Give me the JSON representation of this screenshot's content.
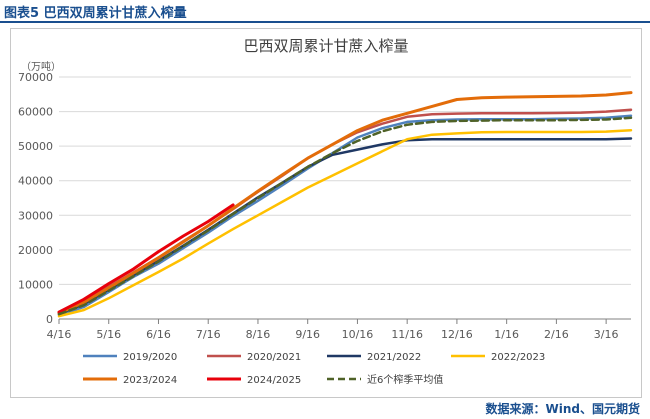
{
  "figure": {
    "label": "图表5 巴西双周累计甘蔗入榨量",
    "source": "数据来源：Wind、国元期货"
  },
  "colors": {
    "header": "#1a4f8f",
    "grid": "#d9d9d9",
    "axis": "#808080"
  },
  "chart_data": {
    "type": "line",
    "title": "巴西双周累计甘蔗入榨量",
    "ylabel": "（万吨）",
    "xlabel": "",
    "ylim": [
      0,
      70000
    ],
    "yticks": [
      0,
      10000,
      20000,
      30000,
      40000,
      50000,
      60000,
      70000
    ],
    "grid": "horizontal",
    "legend_position": "bottom",
    "x": [
      "4/16",
      "5/16",
      "6/16",
      "7/16",
      "8/16",
      "9/16",
      "10/16",
      "11/16",
      "12/16",
      "1/16",
      "2/16",
      "3/16"
    ],
    "x_extent": [
      0,
      11.5
    ],
    "series": [
      {
        "name": "2019/2020",
        "color": "#4f81bd",
        "width": 2.5,
        "dash": "",
        "x": [
          0,
          0.5,
          1,
          1.5,
          2,
          2.5,
          3,
          3.5,
          4,
          4.5,
          5,
          5.5,
          6,
          6.5,
          7,
          7.5,
          8,
          8.5,
          9,
          9.5,
          10,
          10.5,
          11,
          11.5
        ],
        "values": [
          1200,
          3500,
          7800,
          12200,
          16000,
          20500,
          25000,
          29800,
          34200,
          38800,
          43500,
          48000,
          52500,
          55200,
          57000,
          57500,
          57700,
          57800,
          57800,
          57800,
          57900,
          58000,
          58200,
          58800
        ]
      },
      {
        "name": "2020/2021",
        "color": "#c0504d",
        "width": 2.5,
        "dash": "",
        "x": [
          0,
          0.5,
          1,
          1.5,
          2,
          2.5,
          3,
          3.5,
          4,
          4.5,
          5,
          5.5,
          6,
          6.5,
          7,
          7.5,
          8,
          8.5,
          9,
          9.5,
          10,
          10.5,
          11,
          11.5
        ],
        "values": [
          1800,
          5000,
          9300,
          13500,
          17800,
          22500,
          27000,
          31800,
          36800,
          41500,
          46500,
          50500,
          54000,
          56500,
          58500,
          59200,
          59400,
          59500,
          59500,
          59500,
          59600,
          59700,
          60000,
          60500
        ]
      },
      {
        "name": "2021/2022",
        "color": "#1f3864",
        "width": 2.5,
        "dash": "",
        "x": [
          0,
          0.5,
          1,
          1.5,
          2,
          2.5,
          3,
          3.5,
          4,
          4.5,
          5,
          5.5,
          6,
          6.5,
          7,
          7.5,
          8,
          8.5,
          9,
          9.5,
          10,
          10.5,
          11,
          11.5
        ],
        "values": [
          1500,
          4300,
          8500,
          12700,
          16800,
          21200,
          25800,
          30500,
          35200,
          39500,
          44000,
          47500,
          49000,
          50500,
          51700,
          52000,
          52000,
          52000,
          52000,
          52000,
          52000,
          52000,
          52000,
          52200
        ]
      },
      {
        "name": "2022/2023",
        "color": "#ffc000",
        "width": 2.5,
        "dash": "",
        "x": [
          0,
          0.5,
          1,
          1.5,
          2,
          2.5,
          3,
          3.5,
          4,
          4.5,
          5,
          5.5,
          6,
          6.5,
          7,
          7.5,
          8,
          8.5,
          9,
          9.5,
          10,
          10.5,
          11,
          11.5
        ],
        "values": [
          800,
          2600,
          6000,
          9800,
          13600,
          17500,
          21800,
          26000,
          30000,
          34000,
          38000,
          41500,
          45000,
          48500,
          52000,
          53300,
          53700,
          54000,
          54100,
          54100,
          54100,
          54100,
          54200,
          54600
        ]
      },
      {
        "name": "2023/2024",
        "color": "#e36c09",
        "width": 3,
        "dash": "",
        "x": [
          0,
          0.5,
          1,
          1.5,
          2,
          2.5,
          3,
          3.5,
          4,
          4.5,
          5,
          5.5,
          6,
          6.5,
          7,
          7.5,
          8,
          8.5,
          9,
          9.5,
          10,
          10.5,
          11,
          11.5
        ],
        "values": [
          1700,
          4800,
          9000,
          13300,
          17700,
          22300,
          27000,
          32000,
          37000,
          41800,
          46500,
          50500,
          54500,
          57500,
          59500,
          61500,
          63500,
          64000,
          64200,
          64300,
          64400,
          64500,
          64800,
          65500
        ]
      },
      {
        "name": "2024/2025",
        "color": "#e8000b",
        "width": 3,
        "dash": "",
        "x": [
          0,
          0.5,
          1,
          1.5,
          2,
          2.5,
          3,
          3.5
        ],
        "values": [
          2000,
          5700,
          10200,
          14500,
          19500,
          24000,
          28200,
          33000
        ]
      },
      {
        "name": "近6个榨季平均值",
        "color": "#4f6228",
        "width": 2.5,
        "dash": "7,4",
        "x": [
          0,
          0.5,
          1,
          1.5,
          2,
          2.5,
          3,
          3.5,
          4,
          4.5,
          5,
          5.5,
          6,
          6.5,
          7,
          7.5,
          8,
          8.5,
          9,
          9.5,
          10,
          10.5,
          11,
          11.5
        ],
        "values": [
          1400,
          4000,
          8200,
          12400,
          16600,
          21100,
          25600,
          30400,
          35000,
          39500,
          44000,
          48000,
          51500,
          54300,
          56200,
          57000,
          57300,
          57400,
          57500,
          57500,
          57500,
          57600,
          57700,
          58200
        ]
      }
    ]
  }
}
